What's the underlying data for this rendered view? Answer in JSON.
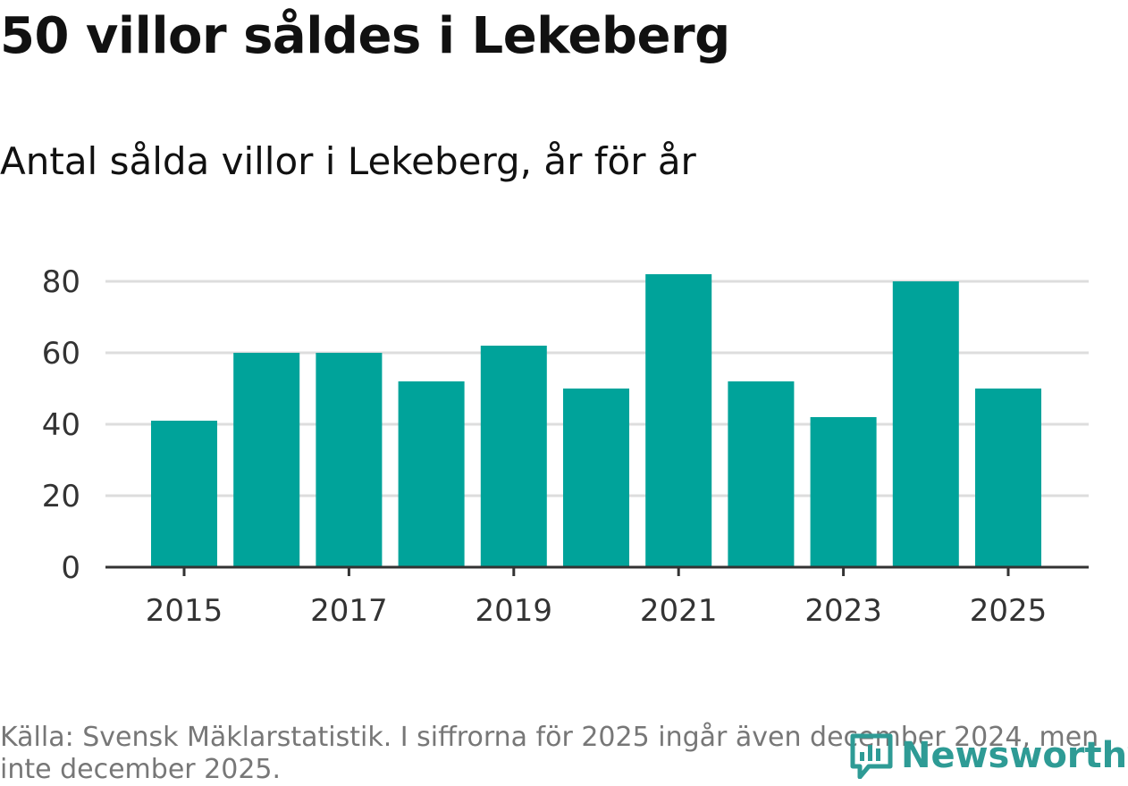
{
  "header": {
    "title": "50 villor såldes i Lekeberg",
    "subtitle": "Antal sålda villor i Lekeberg, år för år"
  },
  "footer": {
    "source": "Källa: Svensk Mäklarstatistik. I siffrorna för 2025 ingår även december 2024, men inte december 2025.",
    "brand": "Newsworthy"
  },
  "colors": {
    "bar": "#00a39a",
    "grid": "#dddddd",
    "axis": "#333333",
    "brand": "#2e9b95"
  },
  "icons": {
    "brand_logo": "bar-chart-speech-bubble-icon"
  },
  "chart_data": {
    "type": "bar",
    "title": "Antal sålda villor i Lekeberg, år för år",
    "xlabel": "",
    "ylabel": "",
    "categories": [
      "2015",
      "2016",
      "2017",
      "2018",
      "2019",
      "2020",
      "2021",
      "2022",
      "2023",
      "2024",
      "2025"
    ],
    "values": [
      41,
      60,
      60,
      52,
      62,
      50,
      82,
      52,
      42,
      80,
      50
    ],
    "x_tick_labels": [
      "2015",
      "2017",
      "2019",
      "2021",
      "2023",
      "2025"
    ],
    "y_ticks": [
      0,
      20,
      40,
      60,
      80
    ],
    "ylim": [
      0,
      85
    ],
    "grid": true,
    "legend": "none"
  }
}
